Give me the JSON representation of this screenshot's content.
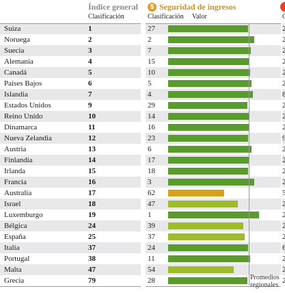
{
  "headers": {
    "indice_title": "Índice general",
    "indice_sub": "Clasificación",
    "seguridad_title": "Seguridad de ingresos",
    "seguridad_sub_rank": "Clasificación",
    "seguridad_sub_value": "Valor",
    "dollar_symbol": "$",
    "next_sub_fragment": "C"
  },
  "avg_label_line1": "Promedios",
  "avg_label_line2": "regionales",
  "colors": {
    "green": "#5a9b2e",
    "yellowgreen": "#9dbb2b",
    "orange": "#d8a21c",
    "row_shade": "#e8e8ea",
    "title": "#8a8a8a",
    "seguridad_title": "#d4901e"
  },
  "value_scale_max": 100,
  "rows": [
    {
      "country": "Suiza",
      "general": "1",
      "rank": "27",
      "value": 88,
      "color": "green",
      "edge": "2"
    },
    {
      "country": "Noruega",
      "general": "2",
      "rank": "2",
      "value": 95,
      "color": "green",
      "edge": "2"
    },
    {
      "country": "Suecia",
      "general": "3",
      "rank": "7",
      "value": 91,
      "color": "green",
      "edge": "2"
    },
    {
      "country": "Alemania",
      "general": "4",
      "rank": "15",
      "value": 89,
      "color": "green",
      "edge": "2"
    },
    {
      "country": "Canadá",
      "general": "5",
      "rank": "10",
      "value": 90,
      "color": "green",
      "edge": "2"
    },
    {
      "country": "Países Bajos",
      "general": "6",
      "rank": "5",
      "value": 92,
      "color": "green",
      "edge": "2"
    },
    {
      "country": "Islandia",
      "general": "7",
      "rank": "4",
      "value": 93,
      "color": "green",
      "edge": "8"
    },
    {
      "country": "Estados Unidos",
      "general": "9",
      "rank": "29",
      "value": 87,
      "color": "green",
      "edge": "2"
    },
    {
      "country": "Reino Unido",
      "general": "10",
      "rank": "14",
      "value": 89,
      "color": "green",
      "edge": "2"
    },
    {
      "country": "Dinamarca",
      "general": "11",
      "rank": "16",
      "value": 89,
      "color": "green",
      "edge": "2"
    },
    {
      "country": "Nueva Zelandia",
      "general": "12",
      "rank": "23",
      "value": 88,
      "color": "green",
      "edge": "9"
    },
    {
      "country": "Austria",
      "general": "13",
      "rank": "6",
      "value": 92,
      "color": "green",
      "edge": "2"
    },
    {
      "country": "Finlandia",
      "general": "14",
      "rank": "17",
      "value": 89,
      "color": "green",
      "edge": "2"
    },
    {
      "country": "Irlanda",
      "general": "15",
      "rank": "18",
      "value": 88,
      "color": "green",
      "edge": "2"
    },
    {
      "country": "Francia",
      "general": "16",
      "rank": "3",
      "value": 95,
      "color": "green",
      "edge": "2"
    },
    {
      "country": "Australia",
      "general": "17",
      "rank": "62",
      "value": 62,
      "color": "orange",
      "edge": "5"
    },
    {
      "country": "Israel",
      "general": "18",
      "rank": "47",
      "value": 77,
      "color": "yellowgreen",
      "edge": "2"
    },
    {
      "country": "Luxemburgo",
      "general": "19",
      "rank": "1",
      "value": 100,
      "color": "green",
      "edge": "2"
    },
    {
      "country": "Bélgica",
      "general": "24",
      "rank": "39",
      "value": 83,
      "color": "yellowgreen",
      "edge": "2"
    },
    {
      "country": "España",
      "general": "25",
      "rank": "37",
      "value": 84,
      "color": "yellowgreen",
      "edge": "2"
    },
    {
      "country": "Italia",
      "general": "37",
      "rank": "24",
      "value": 88,
      "color": "green",
      "edge": "6"
    },
    {
      "country": "Portugal",
      "general": "38",
      "rank": "11",
      "value": 90,
      "color": "green",
      "edge": "2"
    },
    {
      "country": "Malta",
      "general": "47",
      "rank": "54",
      "value": 72,
      "color": "yellowgreen",
      "edge": "2"
    },
    {
      "country": "Grecia",
      "general": "79",
      "rank": "28",
      "value": 87,
      "color": "green",
      "edge": "2"
    }
  ]
}
